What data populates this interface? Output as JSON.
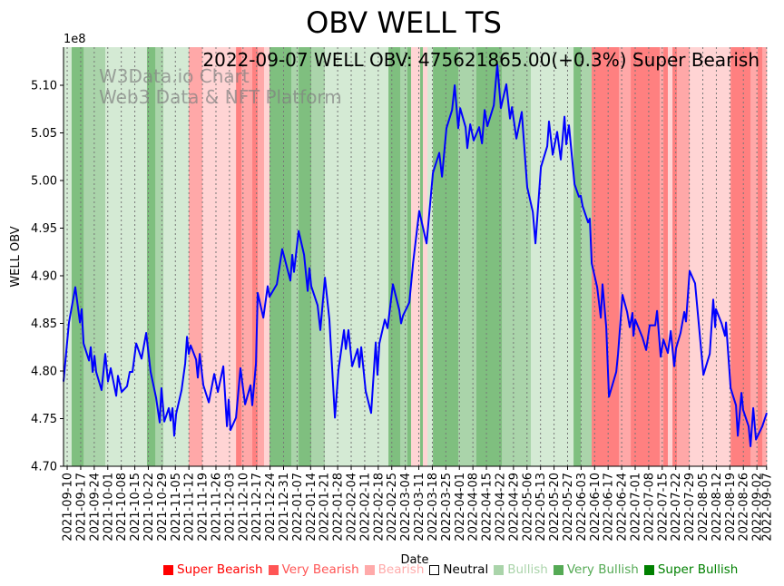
{
  "chart_data": {
    "type": "line",
    "title": "OBV WELL TS",
    "xlabel": "Date",
    "ylabel": "WELL OBV",
    "y_scale_label": "1e8",
    "annotation": "2022-09-07 WELL OBV: 475621865.00(+0.3%) Super Bearish",
    "watermark": [
      "W3Data.io Chart",
      "Web3 Data & NFT Platform"
    ],
    "x_unit": "days since 2021-09-10",
    "xlim": [
      -1.9,
      362.1
    ],
    "ylim": [
      4.7,
      5.14
    ],
    "yticks": [
      4.7,
      4.75,
      4.8,
      4.85,
      4.9,
      4.95,
      5.0,
      5.05,
      5.1
    ],
    "ytick_labels": [
      "4.70",
      "4.75",
      "4.80",
      "4.85",
      "4.90",
      "4.95",
      "5.00",
      "5.05",
      "5.10"
    ],
    "xticks": [
      0,
      7,
      14,
      21,
      28,
      35,
      42,
      49,
      56,
      63,
      70,
      77,
      84,
      91,
      98,
      105,
      112,
      119,
      126,
      133,
      140,
      147,
      154,
      161,
      168,
      175,
      182,
      189,
      196,
      203,
      210,
      217,
      224,
      231,
      238,
      245,
      252,
      259,
      266,
      273,
      280,
      287,
      294,
      301,
      308,
      315,
      322,
      329,
      336,
      343,
      350,
      357,
      362
    ],
    "xtick_labels": [
      "2021-09-10",
      "2021-09-17",
      "2021-09-24",
      "2021-10-01",
      "2021-10-08",
      "2021-10-15",
      "2021-10-22",
      "2021-10-29",
      "2021-11-05",
      "2021-11-12",
      "2021-11-19",
      "2021-11-26",
      "2021-12-03",
      "2021-12-10",
      "2021-12-17",
      "2021-12-24",
      "2021-12-31",
      "2022-01-07",
      "2022-01-14",
      "2022-01-21",
      "2022-01-28",
      "2022-02-04",
      "2022-02-11",
      "2022-02-18",
      "2022-02-25",
      "2022-03-04",
      "2022-03-11",
      "2022-03-18",
      "2022-03-25",
      "2022-04-01",
      "2022-04-08",
      "2022-04-15",
      "2022-04-22",
      "2022-04-29",
      "2022-05-06",
      "2022-05-13",
      "2022-05-20",
      "2022-05-27",
      "2022-06-03",
      "2022-06-10",
      "2022-06-17",
      "2022-06-24",
      "2022-07-01",
      "2022-07-08",
      "2022-07-15",
      "2022-07-22",
      "2022-07-29",
      "2022-08-05",
      "2022-08-12",
      "2022-08-19",
      "2022-08-26",
      "2022-09-02",
      "2022-09-07"
    ],
    "grid": "x-dotted",
    "series": [
      {
        "name": "WELL OBV",
        "color": "#0000ff",
        "x": [
          -1.9,
          0.9,
          4.2,
          6.6,
          7.5,
          8.5,
          11.3,
          12.2,
          13.2,
          14.1,
          15.0,
          17.8,
          19.7,
          21.1,
          22.5,
          25.4,
          26.3,
          28.2,
          31.0,
          32.4,
          33.8,
          35.7,
          38.5,
          40.9,
          43.2,
          46.0,
          47.9,
          48.8,
          50.3,
          52.6,
          53.5,
          54.5,
          55.4,
          56.4,
          59.2,
          61.1,
          62.0,
          62.9,
          63.9,
          66.7,
          67.6,
          68.6,
          70.5,
          73.3,
          76.1,
          78.0,
          80.8,
          82.7,
          83.6,
          84.5,
          87.4,
          89.7,
          92.1,
          94.9,
          95.8,
          97.7,
          98.6,
          101.5,
          103.8,
          104.7,
          108.5,
          111.3,
          115.5,
          116.5,
          117.4,
          119.8,
          122.6,
          124.5,
          125.4,
          126.3,
          129.6,
          131.0,
          133.4,
          135.7,
          138.6,
          140.4,
          143.3,
          144.2,
          145.6,
          147.5,
          150.3,
          151.2,
          152.2,
          154.5,
          157.3,
          159.7,
          160.6,
          161.6,
          164.4,
          165.8,
          168.6,
          171.9,
          172.8,
          173.8,
          177.1,
          179.0,
          182.2,
          186.0,
          189.3,
          192.6,
          194.0,
          196.3,
          199.2,
          200.6,
          202.4,
          203.4,
          206.2,
          207.1,
          208.6,
          210.4,
          213.2,
          214.7,
          216.1,
          217.5,
          220.8,
          222.6,
          224.5,
          227.3,
          229.2,
          230.2,
          232.5,
          235.3,
          238.1,
          241.0,
          242.4,
          245.2,
          248.5,
          249.4,
          251.3,
          253.6,
          255.5,
          257.4,
          258.3,
          259.7,
          262.6,
          264.9,
          265.8,
          266.8,
          269.6,
          270.5,
          271.5,
          274.3,
          276.2,
          277.1,
          279.0,
          280.4,
          284.2,
          285.1,
          287.4,
          289.8,
          291.2,
          292.6,
          293.1,
          294.0,
          297.8,
          299.7,
          301.5,
          304.4,
          305.3,
          307.2,
          308.6,
          310.9,
          312.4,
          314.2,
          315.2,
          317.5,
          319.4,
          320.3,
          322.2,
          325.0,
          329.3,
          332.6,
          334.4,
          335.4,
          335.8,
          338.7,
          340.5,
          341.0,
          343.4,
          346.2,
          347.1,
          349.0,
          349.9,
          352.7,
          353.7,
          355.1,
          356.5,
          359.8,
          362.1
        ],
        "y": [
          4.789,
          4.851,
          4.888,
          4.851,
          4.865,
          4.829,
          4.811,
          4.825,
          4.799,
          4.816,
          4.799,
          4.78,
          4.818,
          4.789,
          4.803,
          4.774,
          4.795,
          4.778,
          4.784,
          4.799,
          4.799,
          4.829,
          4.813,
          4.84,
          4.799,
          4.772,
          4.746,
          4.782,
          4.747,
          4.761,
          4.748,
          4.761,
          4.732,
          4.755,
          4.78,
          4.808,
          4.836,
          4.818,
          4.827,
          4.812,
          4.793,
          4.818,
          4.785,
          4.767,
          4.797,
          4.778,
          4.805,
          4.742,
          4.77,
          4.738,
          4.751,
          4.803,
          4.765,
          4.785,
          4.764,
          4.808,
          4.882,
          4.856,
          4.889,
          4.878,
          4.891,
          4.928,
          4.895,
          4.922,
          4.904,
          4.947,
          4.922,
          4.884,
          4.908,
          4.889,
          4.869,
          4.843,
          4.898,
          4.854,
          4.751,
          4.801,
          4.843,
          4.823,
          4.843,
          4.805,
          4.823,
          4.804,
          4.825,
          4.779,
          4.756,
          4.83,
          4.796,
          4.829,
          4.854,
          4.845,
          4.891,
          4.864,
          4.85,
          4.858,
          4.872,
          4.913,
          4.968,
          4.934,
          5.008,
          5.029,
          5.004,
          5.055,
          5.074,
          5.1,
          5.055,
          5.076,
          5.056,
          5.034,
          5.059,
          5.042,
          5.056,
          5.039,
          5.074,
          5.057,
          5.079,
          5.122,
          5.076,
          5.101,
          5.065,
          5.077,
          5.044,
          5.072,
          4.993,
          4.967,
          4.934,
          5.014,
          5.036,
          5.062,
          5.027,
          5.051,
          5.022,
          5.067,
          5.038,
          5.058,
          4.996,
          4.983,
          4.984,
          4.973,
          4.956,
          4.96,
          4.913,
          4.888,
          4.856,
          4.891,
          4.846,
          4.773,
          4.799,
          4.818,
          4.88,
          4.862,
          4.846,
          4.861,
          4.837,
          4.854,
          4.835,
          4.822,
          4.848,
          4.848,
          4.863,
          4.815,
          4.833,
          4.819,
          4.842,
          4.805,
          4.824,
          4.84,
          4.862,
          4.852,
          4.905,
          4.892,
          4.796,
          4.818,
          4.875,
          4.846,
          4.865,
          4.85,
          4.837,
          4.851,
          4.782,
          4.764,
          4.732,
          4.777,
          4.759,
          4.742,
          4.721,
          4.761,
          4.728,
          4.742,
          4.756
        ]
      }
    ],
    "signal_bands": [
      [
        -1.9,
        2.3,
        1
      ],
      [
        2.3,
        8.5,
        3
      ],
      [
        8.5,
        19.7,
        2
      ],
      [
        19.7,
        41.3,
        1
      ],
      [
        41.3,
        45.6,
        3
      ],
      [
        45.6,
        49.8,
        2
      ],
      [
        49.8,
        62.9,
        1
      ],
      [
        62.9,
        70.0,
        -2
      ],
      [
        70.0,
        87.4,
        -1
      ],
      [
        87.4,
        90.2,
        -3
      ],
      [
        90.2,
        95.8,
        -2
      ],
      [
        95.8,
        98.6,
        -3
      ],
      [
        98.6,
        101.9,
        -2
      ],
      [
        101.9,
        104.7,
        -1
      ],
      [
        104.7,
        116.0,
        3
      ],
      [
        116.0,
        119.8,
        2
      ],
      [
        119.8,
        126.3,
        3
      ],
      [
        126.3,
        133.4,
        2
      ],
      [
        133.4,
        166.3,
        1
      ],
      [
        166.3,
        172.4,
        3
      ],
      [
        172.4,
        176.1,
        2
      ],
      [
        176.1,
        178.0,
        3
      ],
      [
        178.0,
        182.7,
        -1
      ],
      [
        182.7,
        184.1,
        3
      ],
      [
        184.1,
        186.5,
        -1
      ],
      [
        186.5,
        189.3,
        1
      ],
      [
        189.3,
        202.4,
        3
      ],
      [
        202.4,
        211.8,
        2
      ],
      [
        211.8,
        225.0,
        3
      ],
      [
        225.0,
        240.0,
        2
      ],
      [
        240.0,
        262.1,
        1
      ],
      [
        262.1,
        265.8,
        3
      ],
      [
        265.8,
        271.5,
        2
      ],
      [
        271.5,
        285.6,
        -3
      ],
      [
        285.6,
        291.7,
        -2
      ],
      [
        291.7,
        306.7,
        -3
      ],
      [
        306.7,
        308.6,
        -2
      ],
      [
        308.6,
        310.9,
        -3
      ],
      [
        310.9,
        313.3,
        -1
      ],
      [
        313.3,
        315.6,
        -3
      ],
      [
        315.6,
        322.2,
        -2
      ],
      [
        322.2,
        343.4,
        -1
      ],
      [
        343.4,
        353.7,
        -3
      ],
      [
        353.7,
        357.4,
        -2
      ],
      [
        357.4,
        359.8,
        -3
      ],
      [
        359.8,
        362.1,
        -2
      ]
    ],
    "band_colors": {
      "3": "#7fbf7f",
      "2": "#aad4aa",
      "1": "#d4ead4",
      "0": "#ffffff",
      "-1": "#ffd4d4",
      "-2": "#ffa8a8",
      "-3": "#ff8080"
    },
    "legend": {
      "placement": "bottom",
      "items": [
        {
          "label": "Super Bearish",
          "color": "#ff0000"
        },
        {
          "label": "Very Bearish",
          "color": "#ff5555"
        },
        {
          "label": "Bearish",
          "color": "#ffaaaa"
        },
        {
          "label": "Neutral",
          "color": "#000000",
          "hollow": true
        },
        {
          "label": "Bullish",
          "color": "#aad4aa"
        },
        {
          "label": "Very Bullish",
          "color": "#55aa55"
        },
        {
          "label": "Super Bullish",
          "color": "#008000"
        }
      ]
    }
  }
}
